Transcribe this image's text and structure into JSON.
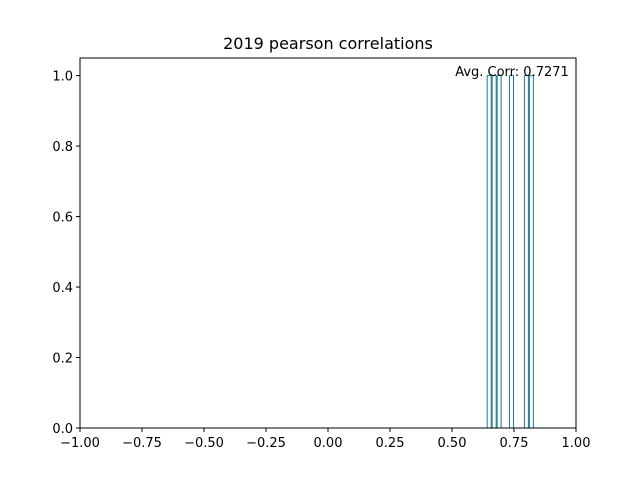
{
  "chart_data": {
    "type": "bar",
    "title": "2019 pearson correlations",
    "xlabel": "",
    "ylabel": "",
    "xlim": [
      -1.0,
      1.0
    ],
    "ylim": [
      0.0,
      1.05
    ],
    "x_ticks": [
      "−1.00",
      "−0.75",
      "−0.50",
      "−0.25",
      "0.00",
      "0.25",
      "0.50",
      "0.75",
      "1.00"
    ],
    "x_tick_values": [
      -1.0,
      -0.75,
      -0.5,
      -0.25,
      0.0,
      0.25,
      0.5,
      0.75,
      1.0
    ],
    "y_ticks": [
      "0.0",
      "0.2",
      "0.4",
      "0.6",
      "0.8",
      "1.0"
    ],
    "y_tick_values": [
      0.0,
      0.2,
      0.4,
      0.6,
      0.8,
      1.0
    ],
    "bars": [
      {
        "x": 0.65,
        "value": 1
      },
      {
        "x": 0.67,
        "value": 1
      },
      {
        "x": 0.69,
        "value": 1
      },
      {
        "x": 0.74,
        "value": 1
      },
      {
        "x": 0.8,
        "value": 1
      },
      {
        "x": 0.82,
        "value": 1
      }
    ],
    "annotation": "Avg. Corr: 0.7271",
    "grid": false,
    "colors": {
      "bar_edge": "#1f7a8c",
      "axis": "#000000",
      "background": "#ffffff"
    }
  }
}
